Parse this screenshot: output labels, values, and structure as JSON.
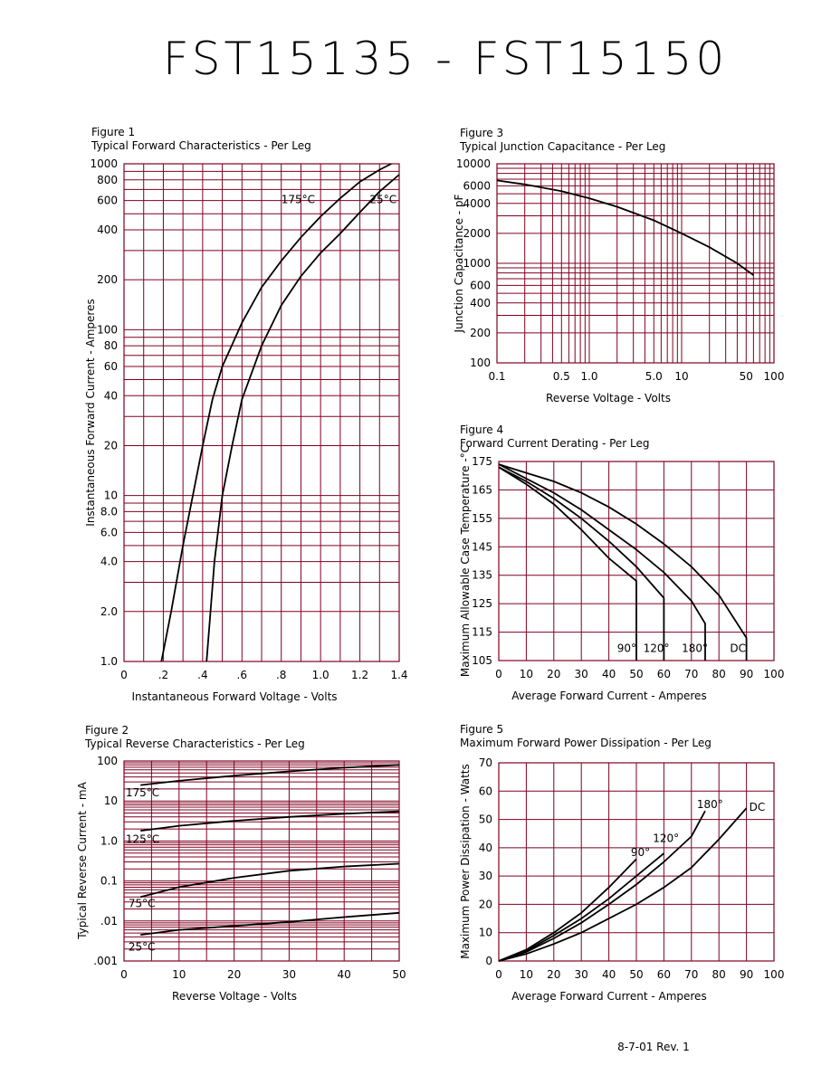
{
  "page": {
    "title": "FST15135 - FST15150",
    "footer": "8-7-01   Rev. 1"
  },
  "chart_data": [
    {
      "id": "fig1",
      "type": "line",
      "figure_label": "Figure 1",
      "title": "Typical Forward Characteristics - Per Leg",
      "xlabel": "Instantaneous Forward Voltage - Volts",
      "ylabel": "Instantaneous Forward Current - Amperes",
      "xscale": "linear",
      "yscale": "log",
      "xlim": [
        0,
        1.4
      ],
      "ylim": [
        1,
        1000
      ],
      "x_ticks": [
        0,
        0.2,
        0.4,
        0.6,
        0.8,
        1.0,
        1.2,
        1.4
      ],
      "x_tick_labels": [
        "0",
        ".2",
        ".4",
        ".6",
        ".8",
        "1.0",
        "1.2",
        "1.4"
      ],
      "y_ticks": [
        1,
        2,
        4,
        6,
        8,
        10,
        20,
        40,
        60,
        80,
        100,
        200,
        400,
        600,
        800,
        1000
      ],
      "y_tick_labels": [
        "1.0",
        "2.0",
        "4.0",
        "6.0",
        "8.0",
        "10",
        "20",
        "40",
        "60",
        "80",
        "100",
        "200",
        "400",
        "600",
        "800",
        "1000"
      ],
      "series": [
        {
          "name": "175°C",
          "x": [
            0.19,
            0.24,
            0.3,
            0.35,
            0.4,
            0.45,
            0.5,
            0.6,
            0.7,
            0.8,
            0.9,
            1.0,
            1.1,
            1.2,
            1.3,
            1.36
          ],
          "y": [
            1.0,
            2.0,
            5.0,
            10,
            20,
            38,
            60,
            110,
            180,
            260,
            360,
            480,
            620,
            780,
            920,
            1000
          ]
        },
        {
          "name": "25°C",
          "x": [
            0.42,
            0.46,
            0.5,
            0.55,
            0.6,
            0.7,
            0.8,
            0.9,
            1.0,
            1.1,
            1.2,
            1.3,
            1.4
          ],
          "y": [
            1.0,
            4.0,
            10,
            20,
            38,
            80,
            140,
            210,
            290,
            380,
            510,
            680,
            860
          ]
        }
      ],
      "annotations": [
        {
          "text": "175°C",
          "x": 0.8,
          "y": 580
        },
        {
          "text": "25°C",
          "x": 1.25,
          "y": 580
        }
      ]
    },
    {
      "id": "fig2",
      "type": "line",
      "figure_label": "Figure 2",
      "title": "Typical Reverse Characteristics - Per Leg",
      "xlabel": "Reverse Voltage - Volts",
      "ylabel": "Typical Reverse Current - mA",
      "xscale": "linear",
      "yscale": "log",
      "xlim": [
        0,
        50
      ],
      "ylim": [
        0.001,
        100
      ],
      "x_ticks": [
        0,
        10,
        20,
        30,
        40,
        50
      ],
      "x_tick_labels": [
        "0",
        "10",
        "20",
        "30",
        "40",
        "50"
      ],
      "y_ticks": [
        0.001,
        0.01,
        0.1,
        1,
        10,
        100
      ],
      "y_tick_labels": [
        ".001",
        ".01",
        "0.1",
        "1.0",
        "10",
        "100"
      ],
      "series": [
        {
          "name": "175°C",
          "x": [
            3,
            10,
            20,
            30,
            40,
            50
          ],
          "y": [
            25,
            32,
            43,
            55,
            68,
            80
          ]
        },
        {
          "name": "125°C",
          "x": [
            3,
            10,
            20,
            30,
            40,
            50
          ],
          "y": [
            1.8,
            2.4,
            3.2,
            4.0,
            4.8,
            5.5
          ]
        },
        {
          "name": "75°C",
          "x": [
            3,
            10,
            20,
            30,
            40,
            50
          ],
          "y": [
            0.04,
            0.07,
            0.12,
            0.18,
            0.23,
            0.27
          ]
        },
        {
          "name": "25°C",
          "x": [
            3,
            10,
            20,
            30,
            40,
            50
          ],
          "y": [
            0.0045,
            0.006,
            0.0075,
            0.0095,
            0.0125,
            0.016
          ]
        }
      ],
      "annotations": [
        {
          "text": "175°C",
          "x": 0.3,
          "y": 13
        },
        {
          "text": "125°C",
          "x": 0.3,
          "y": 0.9
        },
        {
          "text": "75°C",
          "x": 0.8,
          "y": 0.022
        },
        {
          "text": "25°C",
          "x": 0.8,
          "y": 0.0018
        }
      ]
    },
    {
      "id": "fig3",
      "type": "line",
      "figure_label": "Figure 3",
      "title": "Typical Junction Capacitance - Per Leg",
      "xlabel": "Reverse Voltage - Volts",
      "ylabel": "Junction Capacitance - pF",
      "xscale": "log",
      "yscale": "log",
      "xlim": [
        0.1,
        100
      ],
      "ylim": [
        100,
        10000
      ],
      "x_ticks": [
        0.1,
        0.5,
        1.0,
        5.0,
        10,
        50,
        100
      ],
      "x_tick_labels": [
        "0.1",
        "0.5",
        "1.0",
        "5.0",
        "10",
        "50",
        "100"
      ],
      "y_ticks": [
        100,
        200,
        400,
        600,
        1000,
        2000,
        4000,
        6000,
        10000
      ],
      "y_tick_labels": [
        "100",
        "200",
        "400",
        "600",
        "1000",
        "2000",
        "4000",
        "6000",
        "10000"
      ],
      "series": [
        {
          "name": "",
          "x": [
            0.1,
            0.2,
            0.5,
            1,
            2,
            5,
            10,
            20,
            40,
            60
          ],
          "y": [
            6800,
            6200,
            5300,
            4500,
            3700,
            2700,
            2000,
            1450,
            1000,
            760
          ]
        }
      ],
      "annotations": []
    },
    {
      "id": "fig4",
      "type": "line",
      "figure_label": "Figure 4",
      "title": "Forward Current Derating - Per Leg",
      "xlabel": "Average Forward Current - Amperes",
      "ylabel": "Maximum Allowable Case Temperature -°C",
      "xscale": "linear",
      "yscale": "linear",
      "xlim": [
        0,
        100
      ],
      "ylim": [
        105,
        175
      ],
      "x_ticks": [
        0,
        10,
        20,
        30,
        40,
        50,
        60,
        70,
        80,
        90,
        100
      ],
      "x_tick_labels": [
        "0",
        "10",
        "20",
        "30",
        "40",
        "50",
        "60",
        "70",
        "80",
        "90",
        "100"
      ],
      "y_ticks": [
        105,
        115,
        125,
        135,
        145,
        155,
        165,
        175
      ],
      "y_tick_labels": [
        "105",
        "115",
        "125",
        "135",
        "145",
        "155",
        "165",
        "175"
      ],
      "series": [
        {
          "name": "90°",
          "x": [
            0,
            10,
            20,
            30,
            40,
            50,
            50
          ],
          "y": [
            173,
            167,
            160,
            151,
            141,
            133,
            105
          ]
        },
        {
          "name": "120°",
          "x": [
            0,
            10,
            20,
            30,
            40,
            50,
            60,
            60
          ],
          "y": [
            173,
            168,
            162,
            155,
            147,
            138,
            127,
            105
          ]
        },
        {
          "name": "180°",
          "x": [
            0,
            10,
            20,
            30,
            40,
            50,
            60,
            70,
            75,
            75
          ],
          "y": [
            174,
            169,
            164,
            158,
            151,
            144,
            136,
            126,
            118,
            105
          ]
        },
        {
          "name": "DC",
          "x": [
            0,
            10,
            20,
            30,
            40,
            50,
            60,
            70,
            80,
            90,
            90
          ],
          "y": [
            174,
            171,
            168,
            164,
            159,
            153,
            146,
            138,
            128,
            113,
            105
          ]
        }
      ],
      "annotations": [
        {
          "text": "90°",
          "x": 43,
          "y": 108
        },
        {
          "text": "120°",
          "x": 52.5,
          "y": 108
        },
        {
          "text": "180°",
          "x": 66.5,
          "y": 108
        },
        {
          "text": "DC",
          "x": 84,
          "y": 108
        }
      ]
    },
    {
      "id": "fig5",
      "type": "line",
      "figure_label": "Figure 5",
      "title": "Maximum Forward Power Dissipation - Per Leg",
      "xlabel": "Average Forward Current - Amperes",
      "ylabel": "Maximum Power Dissipation - Watts",
      "xscale": "linear",
      "yscale": "linear",
      "xlim": [
        0,
        100
      ],
      "ylim": [
        0,
        70
      ],
      "x_ticks": [
        0,
        10,
        20,
        30,
        40,
        50,
        60,
        70,
        80,
        90,
        100
      ],
      "x_tick_labels": [
        "0",
        "10",
        "20",
        "30",
        "40",
        "50",
        "60",
        "70",
        "80",
        "90",
        "100"
      ],
      "y_ticks": [
        0,
        10,
        20,
        30,
        40,
        50,
        60,
        70
      ],
      "y_tick_labels": [
        "0",
        "10",
        "20",
        "30",
        "40",
        "50",
        "60",
        "70"
      ],
      "series": [
        {
          "name": "90°",
          "x": [
            0,
            10,
            20,
            30,
            40,
            50
          ],
          "y": [
            0,
            4,
            10,
            17,
            26,
            36
          ]
        },
        {
          "name": "120°",
          "x": [
            0,
            10,
            20,
            30,
            40,
            50,
            60
          ],
          "y": [
            0,
            3.5,
            9,
            15,
            22,
            30,
            38
          ]
        },
        {
          "name": "180°",
          "x": [
            0,
            10,
            20,
            30,
            40,
            50,
            60,
            70,
            75
          ],
          "y": [
            0,
            3.2,
            8,
            13.5,
            20,
            27,
            35,
            44,
            53
          ]
        },
        {
          "name": "DC",
          "x": [
            0,
            10,
            20,
            30,
            40,
            50,
            60,
            70,
            80,
            90
          ],
          "y": [
            0,
            2.5,
            6,
            10,
            15,
            20,
            26,
            33,
            43,
            54
          ]
        }
      ],
      "annotations": [
        {
          "text": "90°",
          "x": 48,
          "y": 37
        },
        {
          "text": "120°",
          "x": 56,
          "y": 42
        },
        {
          "text": "180°",
          "x": 72,
          "y": 54
        },
        {
          "text": "DC",
          "x": 91,
          "y": 53
        }
      ]
    }
  ]
}
